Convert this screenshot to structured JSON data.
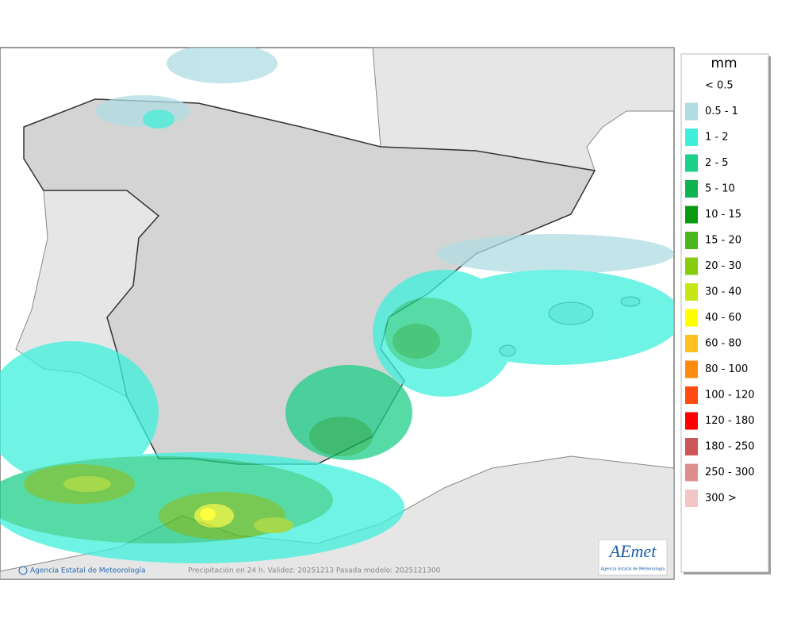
{
  "legend": {
    "title": "mm",
    "items": [
      {
        "label": "< 0.5"
      },
      {
        "label": "0.5 - 1",
        "color": "#b0dde3"
      },
      {
        "label": "1 - 2",
        "color": "#3ef0dc"
      },
      {
        "label": "2 - 5",
        "color": "#1ecf8a"
      },
      {
        "label": "5 - 10",
        "color": "#10b352"
      },
      {
        "label": "10 - 15",
        "color": "#0a9a12"
      },
      {
        "label": "15 - 20",
        "color": "#4ab81a"
      },
      {
        "label": "20 - 30",
        "color": "#88cc10"
      },
      {
        "label": "30 - 40",
        "color": "#c8e614"
      },
      {
        "label": "40 - 60",
        "color": "#ffff00"
      },
      {
        "label": "60 - 80",
        "color": "#ffc020"
      },
      {
        "label": "80 - 100",
        "color": "#ff8a10"
      },
      {
        "label": "100 - 120",
        "color": "#ff4a10"
      },
      {
        "label": "120 - 180",
        "color": "#ff0000"
      },
      {
        "label": "180 - 250",
        "color": "#cc5555"
      },
      {
        "label": "250 - 300",
        "color": "#dd8d8d"
      },
      {
        "label": "300 >",
        "color": "#f0c6c6"
      }
    ]
  },
  "footer": {
    "credit": "Agencia Estatal de Meteorología",
    "caption": "Precipitación en 24 h. Validez: 20251213 Pasada modelo: 2025121300"
  },
  "logo": {
    "name": "AEmet",
    "subtitle": "Agencia Estatal de Meteorología"
  }
}
